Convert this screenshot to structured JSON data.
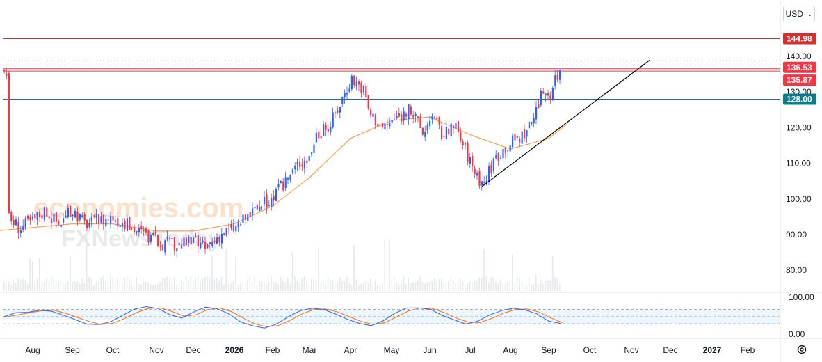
{
  "header": {
    "currency": "USD"
  },
  "watermark": {
    "line1": "economies.com",
    "line2": "FXNewsToday"
  },
  "colors": {
    "up": "#2962ff",
    "down": "#f23645",
    "ma": "#f7a04b",
    "resistance": "#d32f2f",
    "support": "#0d7c88",
    "trendline": "#000000",
    "stoch_k": "#2962ff",
    "stoch_d": "#ff6d00",
    "stoch_band": "#e3f2fd"
  },
  "icons": {
    "settings": "settings-gear-icon",
    "dropdown": "chevron-down-icon"
  },
  "chart_data": [
    {
      "type": "candlestick",
      "title": "",
      "xlabel": "",
      "ylabel": "",
      "x_ticks": [
        "Aug",
        "Sep",
        "Oct",
        "Nov",
        "Dec",
        "2026",
        "Feb",
        "Mar",
        "Apr",
        "May",
        "Jun",
        "Jul",
        "Aug",
        "Sep",
        "Oct",
        "Nov",
        "Dec",
        "2027",
        "Feb"
      ],
      "x_tick_bold": [
        "2026",
        "2027"
      ],
      "y_ticks": [
        "140.00",
        "130.00",
        "120.00",
        "110.00",
        "100.00",
        "90.00",
        "80.00"
      ],
      "ylim": [
        75,
        150
      ],
      "price_lines": [
        {
          "value": "144.98",
          "color": "#d32f2f"
        },
        {
          "value": "136.53",
          "color": "#f23645"
        },
        {
          "value": "135.87",
          "color": "#f23645"
        },
        {
          "value": "128.00",
          "color": "#0d7c88"
        }
      ],
      "price_path": [
        [
          "Jul 10",
          95
        ],
        [
          "Jul 20",
          92
        ],
        [
          "Aug 1",
          94
        ],
        [
          "Aug 10",
          97
        ],
        [
          "Aug 20",
          93
        ],
        [
          "Sep 1",
          97
        ],
        [
          "Sep 10",
          93
        ],
        [
          "Sep 20",
          94
        ],
        [
          "Oct 1",
          95
        ],
        [
          "Oct 15",
          92
        ],
        [
          "Nov 1",
          88
        ],
        [
          "Nov 15",
          87
        ],
        [
          "Dec 1",
          88
        ],
        [
          "Dec 10",
          86
        ],
        [
          "Dec 20",
          90
        ],
        [
          "Jan 1",
          92
        ],
        [
          "Jan 10",
          95
        ],
        [
          "Jan 20",
          98
        ],
        [
          "Feb 1",
          100
        ],
        [
          "Feb 10",
          105
        ],
        [
          "Feb 20",
          110
        ],
        [
          "Mar 1",
          112
        ],
        [
          "Mar 5",
          118
        ],
        [
          "Mar 15",
          120
        ],
        [
          "Mar 25",
          128
        ],
        [
          "Apr 1",
          134
        ],
        [
          "Apr 10",
          131
        ],
        [
          "Apr 15",
          124
        ],
        [
          "Apr 25",
          120
        ],
        [
          "May 1",
          122
        ],
        [
          "May 15",
          125
        ],
        [
          "May 25",
          118
        ],
        [
          "Jun 1",
          124
        ],
        [
          "Jun 10",
          118
        ],
        [
          "Jun 20",
          120
        ],
        [
          "Jul 1",
          110
        ],
        [
          "Jul 10",
          104
        ],
        [
          "Jul 20",
          112
        ],
        [
          "Aug 1",
          116
        ],
        [
          "Aug 10",
          118
        ],
        [
          "Aug 20",
          124
        ],
        [
          "Aug 25",
          131
        ],
        [
          "Sep 1",
          129
        ],
        [
          "Sep 5",
          134
        ],
        [
          "Sep 10",
          136
        ]
      ],
      "moving_average": [
        [
          "Jul 1",
          91
        ],
        [
          "Aug 1",
          92
        ],
        [
          "Sep 1",
          93
        ],
        [
          "Oct 1",
          93
        ],
        [
          "Nov 1",
          91
        ],
        [
          "Dec 1",
          91
        ],
        [
          "Jan 1",
          93
        ],
        [
          "Feb 1",
          98
        ],
        [
          "Mar 1",
          106
        ],
        [
          "Apr 1",
          117
        ],
        [
          "May 1",
          122
        ],
        [
          "Jun 1",
          123
        ],
        [
          "Jul 1",
          118
        ],
        [
          "Aug 1",
          114
        ],
        [
          "Sep 1",
          117
        ],
        [
          "Sep 15",
          121
        ]
      ],
      "trendline": {
        "start": [
          "Jul 10",
          103.5
        ],
        "end": [
          "Nov 15",
          139
        ]
      }
    },
    {
      "type": "line",
      "title": "",
      "y_ticks": [
        "100.00",
        "0.00"
      ],
      "ylim": [
        0,
        100
      ],
      "bands": [
        80,
        50,
        20
      ],
      "series": [
        {
          "values": [
            50,
            65,
            70,
            80,
            75,
            55,
            40,
            20,
            15,
            30,
            55,
            80,
            90,
            85,
            60,
            45,
            70,
            90,
            85,
            60,
            30,
            10,
            5,
            20,
            50,
            75,
            85,
            80,
            60,
            40,
            20,
            15,
            35,
            65,
            85,
            90,
            80,
            55,
            35,
            20,
            30,
            55,
            75,
            85,
            80,
            60,
            30,
            20
          ]
        }
      ]
    }
  ]
}
